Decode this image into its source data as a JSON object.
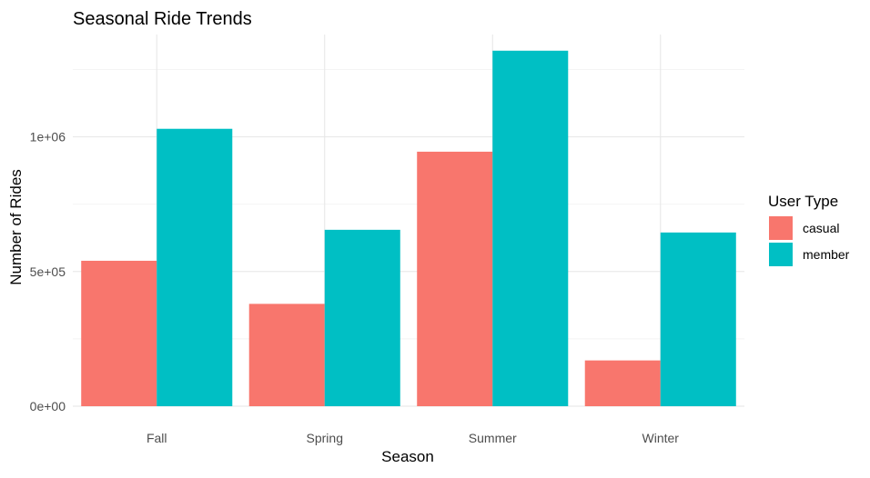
{
  "chart_data": {
    "type": "bar",
    "title": "Seasonal Ride Trends",
    "xlabel": "Season",
    "ylabel": "Number of Rides",
    "categories": [
      "Fall",
      "Spring",
      "Summer",
      "Winter"
    ],
    "series": [
      {
        "name": "casual",
        "values": [
          540000,
          380000,
          945000,
          170000
        ],
        "color": "#F8766D"
      },
      {
        "name": "member",
        "values": [
          1030000,
          655000,
          1320000,
          645000
        ],
        "color": "#00BFC4"
      }
    ],
    "ylim": [
      0,
      1380000
    ],
    "yticks": [
      {
        "value": 0,
        "label": "0e+00"
      },
      {
        "value": 500000,
        "label": "5e+05"
      },
      {
        "value": 1000000,
        "label": "1e+06"
      }
    ],
    "grid": true,
    "legend": {
      "title": "User Type",
      "position": "right",
      "entries": [
        "casual",
        "member"
      ]
    }
  }
}
